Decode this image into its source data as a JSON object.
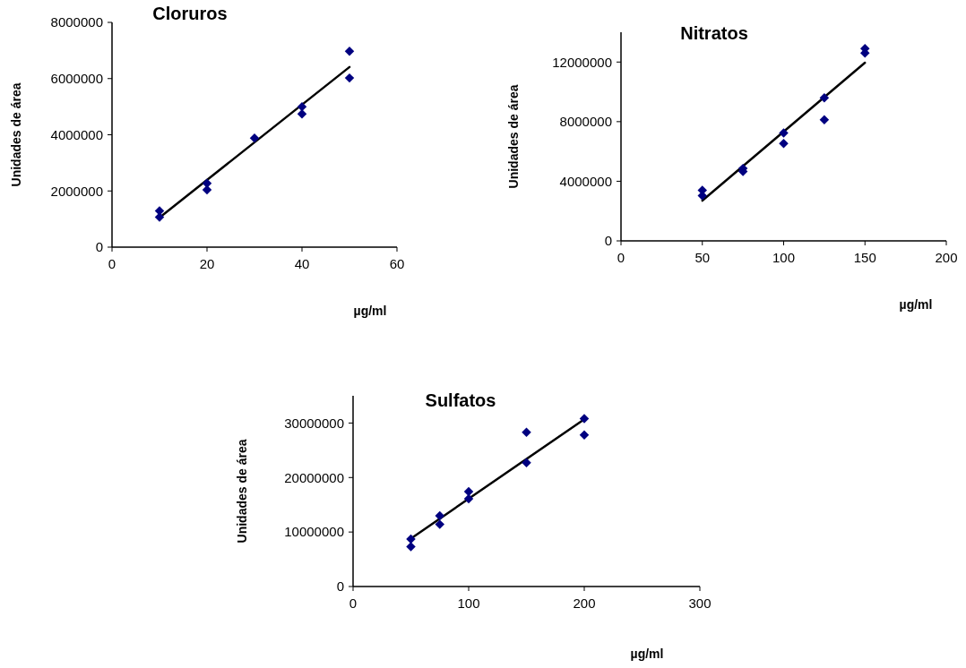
{
  "chart_data": [
    {
      "type": "scatter",
      "title": "Cloruros",
      "xlabel": "µg/ml",
      "ylabel": "Unidades de área",
      "xlim": [
        0,
        60
      ],
      "xticks": [
        0,
        20,
        40,
        60
      ],
      "ylim": [
        0,
        8000000
      ],
      "yticks": [
        0,
        2000000,
        4000000,
        6000000,
        8000000
      ],
      "grid": false,
      "series": [
        {
          "marker": "diamond",
          "color": "#000080",
          "x": [
            10,
            10,
            20,
            20,
            30,
            40,
            40,
            50,
            50
          ],
          "values": [
            1290000,
            1070000,
            2270000,
            2040000,
            3880000,
            5000000,
            4740000,
            6970000,
            6020000
          ]
        },
        {
          "type": "line",
          "color": "#000000",
          "x": [
            10,
            50
          ],
          "values": [
            1050000,
            6410000
          ]
        }
      ]
    },
    {
      "type": "scatter",
      "title": "Nitratos",
      "xlabel": "µg/ml",
      "ylabel": "Unidades de área",
      "xlim": [
        0,
        200
      ],
      "xticks": [
        0,
        50,
        100,
        150,
        200
      ],
      "ylim": [
        0,
        14000000
      ],
      "yticks": [
        0,
        4000000,
        8000000,
        12000000
      ],
      "grid": false,
      "series": [
        {
          "marker": "diamond",
          "color": "#000080",
          "x": [
            50,
            50,
            75,
            75,
            100,
            100,
            125,
            125,
            150,
            150
          ],
          "values": [
            3400000,
            3040000,
            4860000,
            4660000,
            7240000,
            6540000,
            9600000,
            8120000,
            12900000,
            12600000
          ]
        },
        {
          "type": "line",
          "color": "#000000",
          "x": [
            50,
            150
          ],
          "values": [
            2700000,
            11960000
          ]
        }
      ]
    },
    {
      "type": "scatter",
      "title": "Sulfatos",
      "xlabel": "µg/ml",
      "ylabel": "Unidades de área",
      "xlim": [
        0,
        300
      ],
      "xticks": [
        0,
        100,
        200,
        300
      ],
      "ylim": [
        0,
        35000000
      ],
      "yticks": [
        0,
        10000000,
        20000000,
        30000000
      ],
      "grid": false,
      "series": [
        {
          "marker": "diamond",
          "color": "#000080",
          "x": [
            50,
            50,
            75,
            75,
            100,
            100,
            150,
            150,
            200,
            200
          ],
          "values": [
            8700000,
            7300000,
            13000000,
            11400000,
            17400000,
            16100000,
            28300000,
            22700000,
            30800000,
            27800000
          ]
        },
        {
          "type": "line",
          "color": "#000000",
          "x": [
            50,
            200
          ],
          "values": [
            8800000,
            30700000
          ]
        }
      ]
    }
  ]
}
